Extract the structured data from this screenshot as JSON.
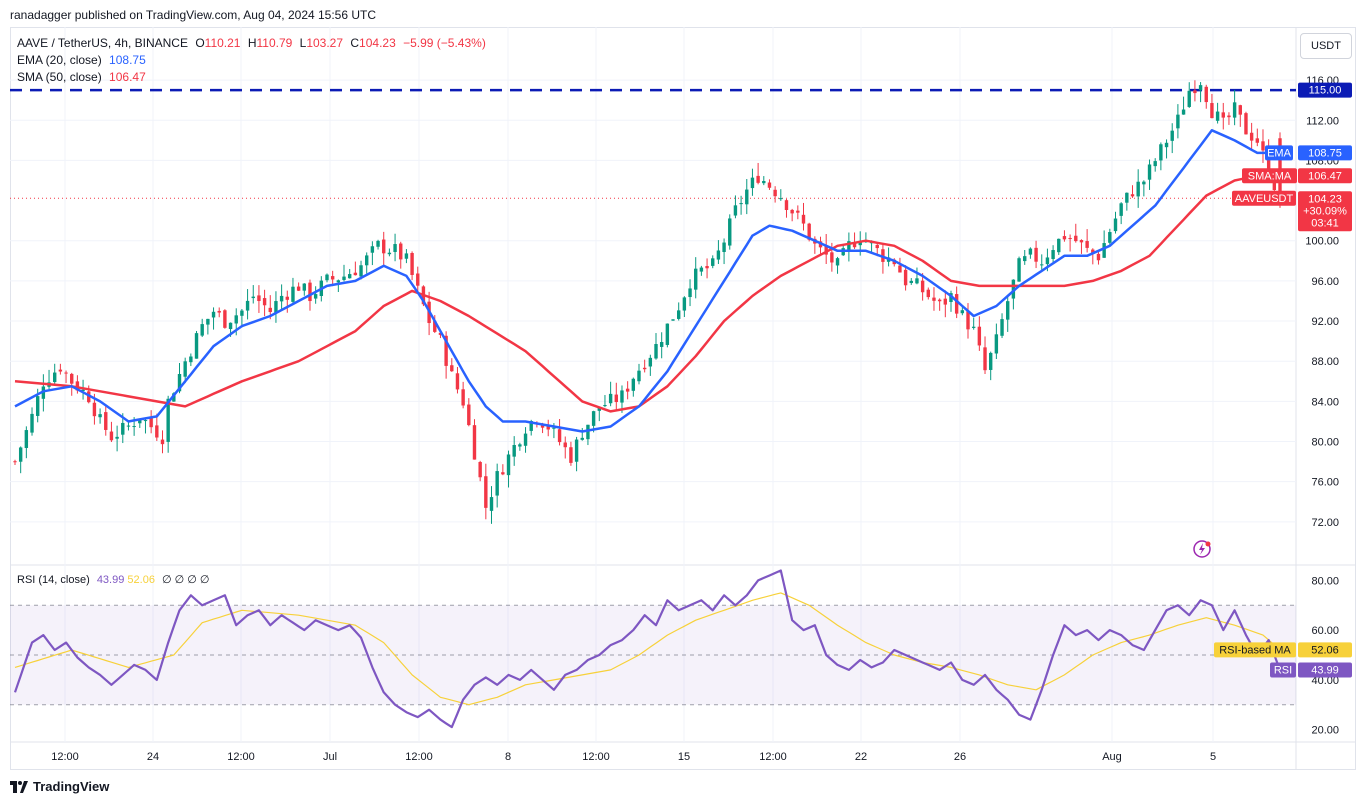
{
  "publisher": "ranadagger published on TradingView.com, Aug 04, 2024 15:56 UTC",
  "currency_button": "USDT",
  "legend": {
    "symbol": "AAVE / TetherUS, 4h, BINANCE",
    "o_label": "O",
    "o": "110.21",
    "h_label": "H",
    "h": "110.79",
    "l_label": "L",
    "l": "103.27",
    "c_label": "C",
    "c": "104.23",
    "change": "−5.99 (−5.43%)",
    "ema_label": "EMA (20, close)",
    "ema_value": "108.75",
    "sma_label": "SMA (50, close)",
    "sma_value": "106.47"
  },
  "rsi_legend": {
    "label": "RSI (14, close)",
    "value": "43.99",
    "ma_value": "52.06",
    "extra": "∅ ∅ ∅ ∅"
  },
  "price_badges": {
    "resistance": "115.00",
    "ema_tag": "EMA",
    "ema": "108.75",
    "sma_tag": "SMA:MA",
    "sma": "106.47",
    "symbol_tag": "AAVEUSDT",
    "price": "104.23",
    "pct": "+30.09%",
    "timer": "03:41"
  },
  "rsi_badges": {
    "ma_tag": "RSI-based MA",
    "ma": "52.06",
    "rsi_tag": "RSI",
    "rsi": "43.99"
  },
  "footer": {
    "brand": "TradingView"
  },
  "colors": {
    "up": "#089981",
    "down": "#f23645",
    "ema": "#2962ff",
    "sma": "#f23645",
    "resistance": "#0b1bb5",
    "rsi": "#7e57c2",
    "rsi_ma": "#f7d13a",
    "grid": "#f0f3fa"
  },
  "chart_data": [
    {
      "type": "candlestick",
      "title": "AAVE / TetherUS, 4h, BINANCE",
      "ylim": [
        68,
        119
      ],
      "y_ticks": [
        "116.00",
        "112.00",
        "108.00",
        "100.00",
        "96.00",
        "92.00",
        "88.00",
        "84.00",
        "80.00",
        "76.00",
        "72.00"
      ],
      "x_ticks": [
        "12:00",
        "24",
        "12:00",
        "Jul",
        "12:00",
        "8",
        "12:00",
        "15",
        "12:00",
        "22",
        "26",
        "Aug",
        "5"
      ],
      "resistance_level": 115,
      "close_path": [
        [
          0,
          78
        ],
        [
          3,
          82.5
        ],
        [
          5,
          86
        ],
        [
          8,
          87.5
        ],
        [
          10,
          86
        ],
        [
          13,
          84.5
        ],
        [
          15,
          82
        ],
        [
          17,
          80.5
        ],
        [
          20,
          81.5
        ],
        [
          22,
          82.5
        ],
        [
          24,
          81.5
        ],
        [
          26,
          80.5
        ],
        [
          27,
          84
        ],
        [
          30,
          88
        ],
        [
          33,
          91.5
        ],
        [
          35,
          93
        ],
        [
          37,
          92
        ],
        [
          40,
          93
        ],
        [
          42,
          94.5
        ],
        [
          45,
          93
        ],
        [
          47,
          94.5
        ],
        [
          50,
          95.5
        ],
        [
          52,
          94.5
        ],
        [
          55,
          96
        ],
        [
          58,
          96.5
        ],
        [
          61,
          97.5
        ],
        [
          64,
          99.5
        ],
        [
          67,
          99
        ],
        [
          69,
          98
        ],
        [
          71,
          95
        ],
        [
          73,
          92
        ],
        [
          75,
          90
        ],
        [
          77,
          86.5
        ],
        [
          79,
          84
        ],
        [
          81,
          79
        ],
        [
          83,
          73.5
        ],
        [
          85,
          76.5
        ],
        [
          88,
          79.5
        ],
        [
          90,
          81.5
        ],
        [
          92,
          82.5
        ],
        [
          94,
          81.5
        ],
        [
          96,
          80
        ],
        [
          98,
          78.5
        ],
        [
          100,
          81
        ],
        [
          103,
          83.5
        ],
        [
          105,
          84
        ],
        [
          107,
          84.5
        ],
        [
          109,
          86.5
        ],
        [
          111,
          88
        ],
        [
          113,
          89.5
        ],
        [
          115,
          91.5
        ],
        [
          117,
          93.5
        ],
        [
          119,
          96
        ],
        [
          121,
          97
        ],
        [
          123,
          97.5
        ],
        [
          125,
          100
        ],
        [
          127,
          103
        ],
        [
          129,
          105
        ],
        [
          131,
          106.5
        ],
        [
          133,
          105.5
        ],
        [
          135,
          104.5
        ],
        [
          137,
          103
        ],
        [
          139,
          101.5
        ],
        [
          141,
          99.5
        ],
        [
          143,
          98.5
        ],
        [
          145,
          97.5
        ],
        [
          147,
          99.5
        ],
        [
          149,
          100.5
        ],
        [
          151,
          99.5
        ],
        [
          153,
          98.5
        ],
        [
          155,
          98
        ],
        [
          157,
          96
        ],
        [
          159,
          95.5
        ],
        [
          161,
          94.5
        ],
        [
          163,
          93.5
        ],
        [
          165,
          94.5
        ],
        [
          167,
          92.5
        ],
        [
          169,
          91
        ],
        [
          171,
          87
        ],
        [
          173,
          90
        ],
        [
          175,
          94
        ],
        [
          177,
          97.5
        ],
        [
          179,
          98.5
        ],
        [
          181,
          98
        ],
        [
          183,
          99.5
        ],
        [
          185,
          100.5
        ],
        [
          187,
          100
        ],
        [
          189,
          99
        ],
        [
          191,
          98.5
        ],
        [
          193,
          101
        ],
        [
          195,
          103.5
        ],
        [
          197,
          105
        ],
        [
          199,
          106
        ],
        [
          201,
          108
        ],
        [
          203,
          110
        ],
        [
          205,
          112
        ],
        [
          207,
          115
        ],
        [
          209,
          116
        ],
        [
          211,
          113
        ],
        [
          213,
          111.5
        ],
        [
          215,
          113
        ],
        [
          217,
          111
        ],
        [
          219,
          110
        ],
        [
          221,
          107
        ],
        [
          223,
          104.23
        ]
      ],
      "ema20_path": [
        [
          0,
          83.5
        ],
        [
          5,
          85
        ],
        [
          10,
          85.5
        ],
        [
          15,
          84
        ],
        [
          20,
          82
        ],
        [
          25,
          82.5
        ],
        [
          30,
          86
        ],
        [
          35,
          89.5
        ],
        [
          40,
          91.5
        ],
        [
          45,
          92.5
        ],
        [
          50,
          94
        ],
        [
          55,
          95.5
        ],
        [
          60,
          96
        ],
        [
          65,
          97.5
        ],
        [
          69,
          96.5
        ],
        [
          72,
          94
        ],
        [
          76,
          90
        ],
        [
          80,
          86
        ],
        [
          83,
          83.5
        ],
        [
          86,
          82
        ],
        [
          90,
          82
        ],
        [
          95,
          81.5
        ],
        [
          100,
          81
        ],
        [
          105,
          81.5
        ],
        [
          110,
          83.5
        ],
        [
          115,
          87
        ],
        [
          120,
          91.5
        ],
        [
          125,
          96
        ],
        [
          130,
          100.5
        ],
        [
          133,
          101.5
        ],
        [
          137,
          101
        ],
        [
          141,
          100
        ],
        [
          145,
          99
        ],
        [
          150,
          99
        ],
        [
          155,
          98
        ],
        [
          160,
          96.5
        ],
        [
          165,
          94.5
        ],
        [
          169,
          92.5
        ],
        [
          173,
          93.5
        ],
        [
          177,
          95.5
        ],
        [
          181,
          97
        ],
        [
          185,
          98.5
        ],
        [
          189,
          98.5
        ],
        [
          193,
          99.5
        ],
        [
          197,
          101.5
        ],
        [
          201,
          103.5
        ],
        [
          205,
          106.5
        ],
        [
          209,
          109.5
        ],
        [
          211,
          111
        ],
        [
          213,
          110.5
        ],
        [
          215,
          110
        ],
        [
          219,
          108.75
        ],
        [
          223,
          108.75
        ]
      ],
      "sma50_path": [
        [
          0,
          86
        ],
        [
          10,
          85.5
        ],
        [
          20,
          84.5
        ],
        [
          30,
          83.5
        ],
        [
          40,
          86
        ],
        [
          50,
          88
        ],
        [
          60,
          91
        ],
        [
          65,
          93.5
        ],
        [
          70,
          95
        ],
        [
          75,
          94
        ],
        [
          80,
          92.5
        ],
        [
          90,
          89
        ],
        [
          95,
          86.5
        ],
        [
          100,
          84
        ],
        [
          105,
          83
        ],
        [
          110,
          83.5
        ],
        [
          115,
          85.5
        ],
        [
          120,
          88.5
        ],
        [
          125,
          92
        ],
        [
          130,
          94.5
        ],
        [
          135,
          96.5
        ],
        [
          140,
          98
        ],
        [
          145,
          99.5
        ],
        [
          150,
          100
        ],
        [
          155,
          99.5
        ],
        [
          160,
          98
        ],
        [
          165,
          96
        ],
        [
          170,
          95.5
        ],
        [
          175,
          95.5
        ],
        [
          180,
          95.5
        ],
        [
          185,
          95.5
        ],
        [
          190,
          96
        ],
        [
          195,
          97
        ],
        [
          200,
          98.5
        ],
        [
          205,
          101.5
        ],
        [
          210,
          104.5
        ],
        [
          215,
          106
        ],
        [
          219,
          106.47
        ],
        [
          223,
          106.47
        ]
      ],
      "last": 104.23
    },
    {
      "type": "line",
      "title": "RSI (14, close)",
      "ylim": [
        15,
        85
      ],
      "y_ticks": [
        "80.00",
        "60.00",
        "40.00",
        "20.00"
      ],
      "bands": [
        70,
        50,
        30
      ],
      "rsi_path": [
        [
          0,
          35
        ],
        [
          3,
          55
        ],
        [
          5,
          58
        ],
        [
          7,
          52
        ],
        [
          9,
          55
        ],
        [
          11,
          49
        ],
        [
          13,
          45
        ],
        [
          15,
          42
        ],
        [
          17,
          38
        ],
        [
          19,
          42
        ],
        [
          21,
          46
        ],
        [
          23,
          44
        ],
        [
          25,
          40
        ],
        [
          27,
          55
        ],
        [
          29,
          68
        ],
        [
          31,
          74
        ],
        [
          33,
          70
        ],
        [
          35,
          72
        ],
        [
          37,
          74
        ],
        [
          39,
          62
        ],
        [
          41,
          66
        ],
        [
          43,
          68
        ],
        [
          45,
          62
        ],
        [
          47,
          66
        ],
        [
          49,
          63
        ],
        [
          51,
          60
        ],
        [
          53,
          64
        ],
        [
          55,
          62
        ],
        [
          57,
          60
        ],
        [
          59,
          62
        ],
        [
          61,
          57
        ],
        [
          63,
          45
        ],
        [
          65,
          35
        ],
        [
          67,
          30
        ],
        [
          69,
          27
        ],
        [
          71,
          25
        ],
        [
          73,
          28
        ],
        [
          75,
          24
        ],
        [
          77,
          21
        ],
        [
          79,
          32
        ],
        [
          81,
          38
        ],
        [
          83,
          41
        ],
        [
          85,
          38
        ],
        [
          87,
          42
        ],
        [
          89,
          40
        ],
        [
          91,
          44
        ],
        [
          93,
          40
        ],
        [
          95,
          36
        ],
        [
          97,
          42
        ],
        [
          99,
          44
        ],
        [
          101,
          48
        ],
        [
          103,
          50
        ],
        [
          105,
          54
        ],
        [
          107,
          56
        ],
        [
          109,
          60
        ],
        [
          111,
          66
        ],
        [
          113,
          62
        ],
        [
          115,
          72
        ],
        [
          117,
          68
        ],
        [
          119,
          70
        ],
        [
          121,
          72
        ],
        [
          123,
          68
        ],
        [
          125,
          74
        ],
        [
          127,
          70
        ],
        [
          129,
          74
        ],
        [
          131,
          80
        ],
        [
          133,
          82
        ],
        [
          135,
          84
        ],
        [
          137,
          64
        ],
        [
          139,
          60
        ],
        [
          141,
          62
        ],
        [
          143,
          50
        ],
        [
          145,
          46
        ],
        [
          147,
          44
        ],
        [
          149,
          48
        ],
        [
          151,
          45
        ],
        [
          153,
          47
        ],
        [
          155,
          52
        ],
        [
          157,
          50
        ],
        [
          159,
          48
        ],
        [
          161,
          46
        ],
        [
          163,
          44
        ],
        [
          165,
          47
        ],
        [
          167,
          40
        ],
        [
          169,
          38
        ],
        [
          171,
          42
        ],
        [
          173,
          36
        ],
        [
          175,
          32
        ],
        [
          177,
          26
        ],
        [
          179,
          24
        ],
        [
          181,
          36
        ],
        [
          183,
          50
        ],
        [
          185,
          62
        ],
        [
          187,
          58
        ],
        [
          189,
          60
        ],
        [
          191,
          56
        ],
        [
          193,
          60
        ],
        [
          195,
          58
        ],
        [
          197,
          54
        ],
        [
          199,
          52
        ],
        [
          201,
          60
        ],
        [
          203,
          68
        ],
        [
          205,
          70
        ],
        [
          207,
          66
        ],
        [
          209,
          72
        ],
        [
          211,
          70
        ],
        [
          213,
          60
        ],
        [
          215,
          68
        ],
        [
          217,
          58
        ],
        [
          219,
          50
        ],
        [
          221,
          56
        ],
        [
          223,
          43.99
        ]
      ],
      "rsi_ma_path": [
        [
          0,
          45
        ],
        [
          10,
          52
        ],
        [
          20,
          45
        ],
        [
          28,
          50
        ],
        [
          33,
          63
        ],
        [
          40,
          68
        ],
        [
          50,
          66
        ],
        [
          60,
          62
        ],
        [
          65,
          55
        ],
        [
          70,
          42
        ],
        [
          75,
          33
        ],
        [
          80,
          30
        ],
        [
          85,
          33
        ],
        [
          90,
          38
        ],
        [
          95,
          40
        ],
        [
          100,
          42
        ],
        [
          105,
          44
        ],
        [
          110,
          50
        ],
        [
          115,
          58
        ],
        [
          120,
          64
        ],
        [
          125,
          68
        ],
        [
          130,
          72
        ],
        [
          135,
          75
        ],
        [
          140,
          70
        ],
        [
          145,
          62
        ],
        [
          150,
          55
        ],
        [
          155,
          50
        ],
        [
          160,
          47
        ],
        [
          165,
          45
        ],
        [
          170,
          42
        ],
        [
          175,
          38
        ],
        [
          180,
          36
        ],
        [
          185,
          42
        ],
        [
          190,
          50
        ],
        [
          195,
          55
        ],
        [
          200,
          58
        ],
        [
          205,
          62
        ],
        [
          210,
          65
        ],
        [
          215,
          62
        ],
        [
          220,
          58
        ],
        [
          223,
          52.06
        ]
      ],
      "last": 43.99,
      "last_ma": 52.06
    }
  ]
}
